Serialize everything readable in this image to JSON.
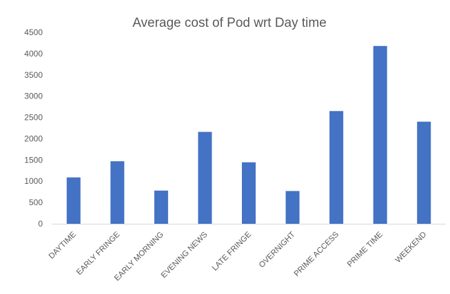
{
  "chart_data": {
    "type": "bar",
    "title": "Average cost of Pod wrt Day time",
    "xlabel": "",
    "ylabel": "",
    "categories": [
      "DAYTIME",
      "EARLY FRINGE",
      "EARLY MORNING",
      "EVENING NEWS",
      "LATE FRINGE",
      "OVERNIGHT",
      "PRIME ACCESS",
      "PRIME TIME",
      "WEEKEND"
    ],
    "values": [
      1090,
      1470,
      780,
      2160,
      1445,
      770,
      2650,
      4180,
      2400
    ],
    "ylim": [
      0,
      4500
    ],
    "yticks": [
      0,
      500,
      1000,
      1500,
      2000,
      2500,
      3000,
      3500,
      4000,
      4500
    ],
    "bar_color": "#4472C4",
    "grid": false,
    "legend": "none"
  }
}
